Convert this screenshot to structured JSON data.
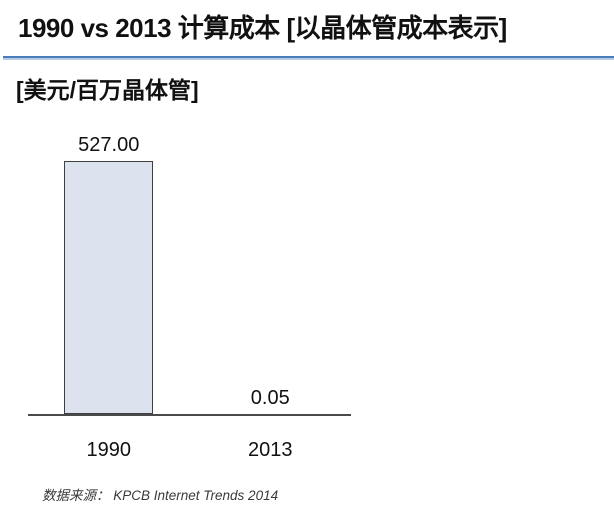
{
  "slide": {
    "title": "1990 vs 2013 计算成本 [以晶体管成本表示]",
    "unit_label": "[美元/百万晶体管]",
    "source_note": "数据来源： KPCB Internet Trends 2014"
  },
  "colors": {
    "divider_blue": "#4a7ebb",
    "divider_blue_light": "#b8cce4",
    "bar_fill": "#dde3ee",
    "bar_border": "#3f3f3f",
    "axis_line": "#4a4a4a"
  },
  "chart_data": {
    "type": "bar",
    "title": "1990 vs 2013 计算成本 [以晶体管成本表示]",
    "ylabel": "美元/百万晶体管",
    "categories": [
      "1990",
      "2013"
    ],
    "values": [
      527,
      0.05
    ],
    "value_labels": [
      "527.00",
      "0.05"
    ],
    "ylim": [
      0,
      527
    ],
    "grid": false,
    "legend": "none",
    "source": "KPCB Internet Trends 2014"
  }
}
